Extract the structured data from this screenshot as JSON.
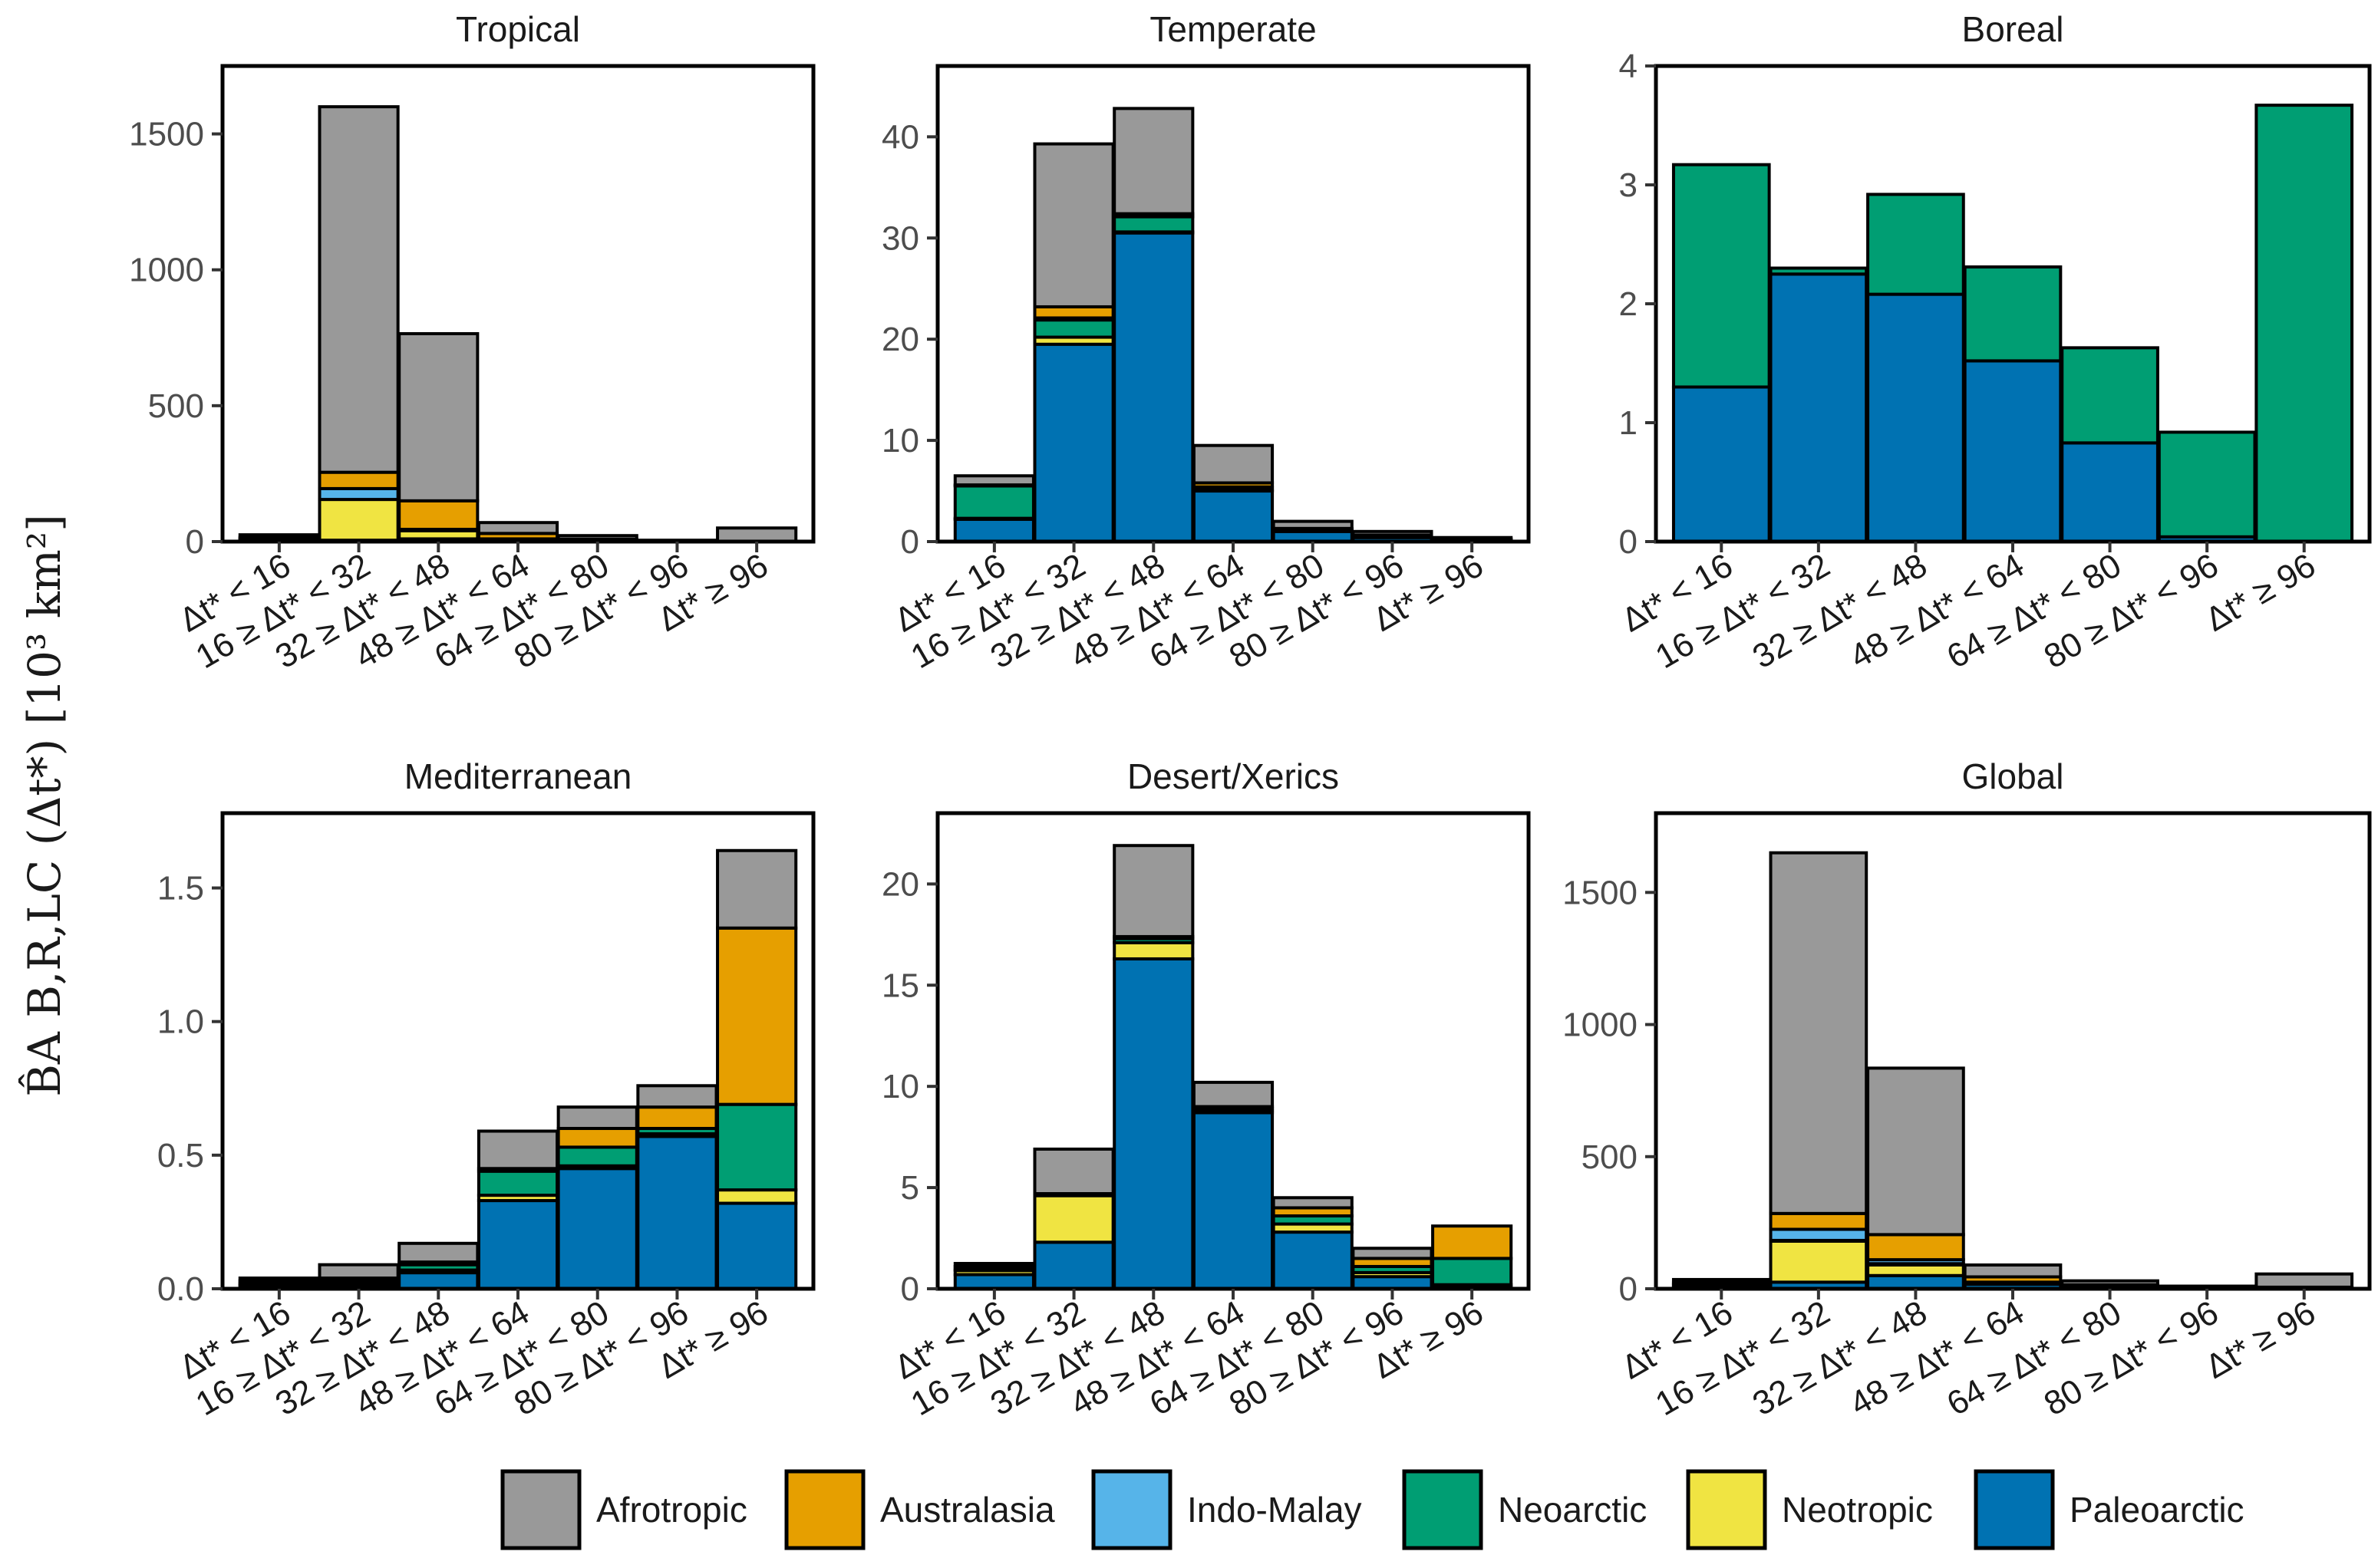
{
  "y_axis_label": "B̂A B,R,LC (Δt*) [10³ km²]",
  "x_categories": [
    "Δt* < 16",
    "16 ≥ Δt* < 32",
    "32 ≥ Δt* < 48",
    "48 ≥ Δt* < 64",
    "64 ≥ Δt* < 80",
    "80 ≥ Δt* < 96",
    "Δt* ≥ 96"
  ],
  "legend": [
    {
      "name": "Afrotropic",
      "color": "#999999"
    },
    {
      "name": "Australasia",
      "color": "#E69F00"
    },
    {
      "name": "Indo-Malay",
      "color": "#56B4E9"
    },
    {
      "name": "Neoarctic",
      "color": "#009E73"
    },
    {
      "name": "Neotropic",
      "color": "#F0E442"
    },
    {
      "name": "Paleoarctic",
      "color": "#0072B2"
    }
  ],
  "chart_data": [
    {
      "type": "bar",
      "stacked": true,
      "title": "Tropical",
      "ylim": [
        0,
        1750
      ],
      "yticks": [
        0,
        500,
        1000,
        1500
      ],
      "series": [
        {
          "name": "Paleoarctic",
          "values": [
            2,
            5,
            10,
            3,
            1,
            0,
            0
          ]
        },
        {
          "name": "Neotropic",
          "values": [
            5,
            150,
            30,
            5,
            2,
            0,
            0
          ]
        },
        {
          "name": "Neoarctic",
          "values": [
            0,
            0,
            0,
            0,
            0,
            0,
            0
          ]
        },
        {
          "name": "Indo-Malay",
          "values": [
            3,
            40,
            5,
            2,
            1,
            0,
            0
          ]
        },
        {
          "name": "Australasia",
          "values": [
            5,
            60,
            105,
            20,
            5,
            0,
            0
          ]
        },
        {
          "name": "Afrotropic",
          "values": [
            10,
            1345,
            615,
            40,
            13,
            5,
            50
          ]
        }
      ]
    },
    {
      "type": "bar",
      "stacked": true,
      "title": "Temperate",
      "ylim": [
        0,
        47
      ],
      "yticks": [
        0,
        10,
        20,
        30,
        40
      ],
      "series": [
        {
          "name": "Paleoarctic",
          "values": [
            2.2,
            19.5,
            30.5,
            5.0,
            1.0,
            0.4,
            0.15
          ]
        },
        {
          "name": "Neotropic",
          "values": [
            0.1,
            0.7,
            0.1,
            0.1,
            0,
            0,
            0
          ]
        },
        {
          "name": "Neoarctic",
          "values": [
            3.2,
            1.7,
            1.5,
            0.3,
            0.2,
            0.2,
            0.05
          ]
        },
        {
          "name": "Indo-Malay",
          "values": [
            0,
            0.2,
            0,
            0,
            0,
            0,
            0
          ]
        },
        {
          "name": "Australasia",
          "values": [
            0.1,
            1.1,
            0.3,
            0.4,
            0.1,
            0.05,
            0.05
          ]
        },
        {
          "name": "Afrotropic",
          "values": [
            0.9,
            16.1,
            10.4,
            3.7,
            0.7,
            0.35,
            0.15
          ]
        }
      ]
    },
    {
      "type": "bar",
      "stacked": true,
      "title": "Boreal",
      "ylim": [
        0,
        4
      ],
      "yticks": [
        0,
        1,
        2,
        3,
        4
      ],
      "series": [
        {
          "name": "Paleoarctic",
          "values": [
            1.3,
            2.25,
            2.08,
            1.52,
            0.83,
            0.04,
            0
          ]
        },
        {
          "name": "Neoarctic",
          "values": [
            1.87,
            0.05,
            0.84,
            0.79,
            0.8,
            0.88,
            3.67
          ]
        }
      ]
    },
    {
      "type": "bar",
      "stacked": true,
      "title": "Mediterranean",
      "ylim": [
        0,
        1.78
      ],
      "yticks": [
        0.0,
        0.5,
        1.0,
        1.5
      ],
      "series": [
        {
          "name": "Paleoarctic",
          "values": [
            0.01,
            0.01,
            0.06,
            0.33,
            0.45,
            0.57,
            0.32
          ]
        },
        {
          "name": "Neotropic",
          "values": [
            0.005,
            0.01,
            0.01,
            0.02,
            0.01,
            0.01,
            0.05
          ]
        },
        {
          "name": "Neoarctic",
          "values": [
            0.005,
            0.01,
            0.02,
            0.09,
            0.07,
            0.02,
            0.32
          ]
        },
        {
          "name": "Indo-Malay",
          "values": [
            0,
            0,
            0,
            0,
            0,
            0,
            0
          ]
        },
        {
          "name": "Australasia",
          "values": [
            0.01,
            0.01,
            0.01,
            0.01,
            0.07,
            0.08,
            0.66
          ]
        },
        {
          "name": "Afrotropic",
          "values": [
            0.01,
            0.05,
            0.07,
            0.14,
            0.08,
            0.08,
            0.29
          ]
        }
      ]
    },
    {
      "type": "bar",
      "stacked": true,
      "title": "Desert/Xerics",
      "ylim": [
        0,
        23.5
      ],
      "yticks": [
        0,
        5,
        10,
        15,
        20
      ],
      "series": [
        {
          "name": "Paleoarctic",
          "values": [
            0.7,
            2.3,
            16.3,
            8.7,
            2.8,
            0.6,
            0.1
          ]
        },
        {
          "name": "Neotropic",
          "values": [
            0.2,
            2.3,
            0.8,
            0.1,
            0.4,
            0.2,
            0.1
          ]
        },
        {
          "name": "Neoarctic",
          "values": [
            0.05,
            0,
            0.2,
            0.1,
            0.4,
            0.3,
            1.3
          ]
        },
        {
          "name": "Indo-Malay",
          "values": [
            0,
            0,
            0,
            0,
            0,
            0,
            0
          ]
        },
        {
          "name": "Australasia",
          "values": [
            0.15,
            0.1,
            0.1,
            0.1,
            0.4,
            0.4,
            1.6
          ]
        },
        {
          "name": "Afrotropic",
          "values": [
            0.15,
            2.2,
            4.5,
            1.2,
            0.5,
            0.5,
            0
          ]
        }
      ]
    },
    {
      "type": "bar",
      "stacked": true,
      "title": "Global",
      "ylim": [
        0,
        1800
      ],
      "yticks": [
        0,
        500,
        1000,
        1500
      ],
      "series": [
        {
          "name": "Paleoarctic",
          "values": [
            5,
            25,
            50,
            17,
            5,
            1,
            0
          ]
        },
        {
          "name": "Neotropic",
          "values": [
            5,
            155,
            40,
            5,
            3,
            0,
            0
          ]
        },
        {
          "name": "Neoarctic",
          "values": [
            5,
            3,
            5,
            1,
            1,
            1,
            4
          ]
        },
        {
          "name": "Indo-Malay",
          "values": [
            3,
            42,
            15,
            2,
            1,
            0,
            0
          ]
        },
        {
          "name": "Australasia",
          "values": [
            6,
            60,
            95,
            20,
            5,
            1,
            2
          ]
        },
        {
          "name": "Afrotropic",
          "values": [
            11,
            1365,
            630,
            45,
            15,
            7,
            50
          ]
        }
      ]
    }
  ]
}
